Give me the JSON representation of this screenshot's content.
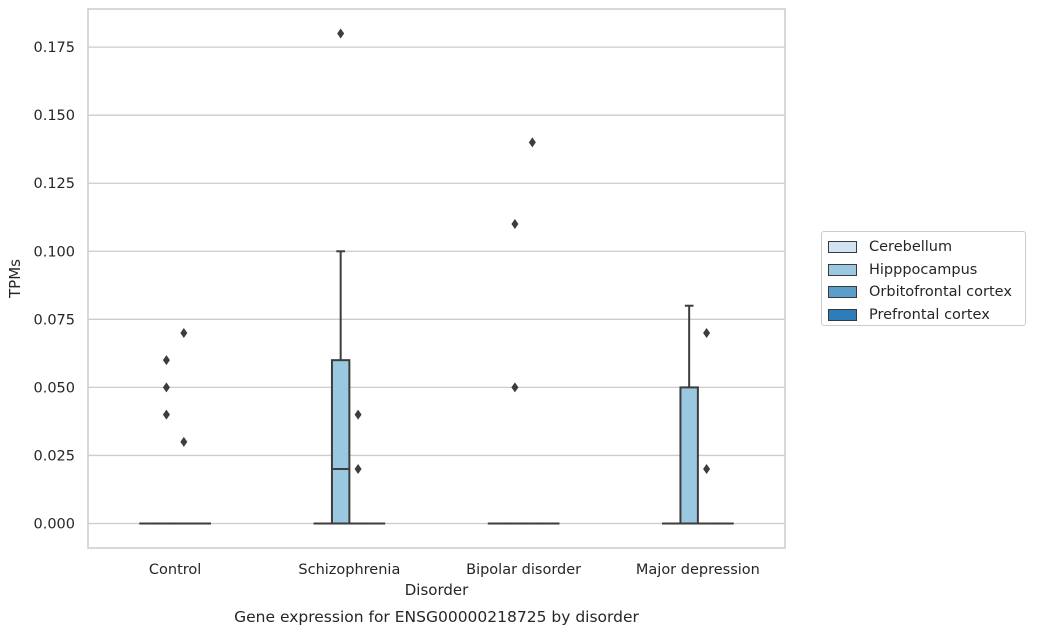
{
  "chart_data": {
    "type": "box",
    "title": "Gene expression for ENSG00000218725 by disorder",
    "xlabel": "Disorder",
    "ylabel": "TPMs",
    "ylim": [
      -0.009,
      0.189
    ],
    "yticks": [
      0.0,
      0.025,
      0.05,
      0.075,
      0.1,
      0.125,
      0.15,
      0.175
    ],
    "ytick_labels": [
      "0.000",
      "0.025",
      "0.050",
      "0.075",
      "0.100",
      "0.125",
      "0.150",
      "0.175"
    ],
    "grid": "horizontal",
    "legend_position": "right",
    "categories": [
      "Control",
      "Schizophrenia",
      "Bipolar disorder",
      "Major depression"
    ],
    "series": [
      {
        "name": "Cerebellum",
        "color": "#d1e3f3",
        "boxes": [
          {
            "category": "Control",
            "q1": 0,
            "median": 0,
            "q3": 0,
            "whisker_low": 0,
            "whisker_high": 0,
            "outliers": []
          },
          {
            "category": "Schizophrenia",
            "q1": 0,
            "median": 0,
            "q3": 0,
            "whisker_low": 0,
            "whisker_high": 0,
            "outliers": []
          },
          {
            "category": "Bipolar disorder",
            "q1": 0,
            "median": 0,
            "q3": 0,
            "whisker_low": 0,
            "whisker_high": 0,
            "outliers": []
          },
          {
            "category": "Major depression",
            "q1": 0,
            "median": 0,
            "q3": 0,
            "whisker_low": 0,
            "whisker_high": 0,
            "outliers": []
          }
        ]
      },
      {
        "name": "Hipppocampus",
        "color": "#9ac8e0",
        "boxes": [
          {
            "category": "Control",
            "q1": 0,
            "median": 0,
            "q3": 0,
            "whisker_low": 0,
            "whisker_high": 0,
            "outliers": [
              0.04,
              0.05,
              0.06
            ]
          },
          {
            "category": "Schizophrenia",
            "q1": 0,
            "median": 0.02,
            "q3": 0.06,
            "whisker_low": 0,
            "whisker_high": 0.1,
            "outliers": [
              0.18
            ]
          },
          {
            "category": "Bipolar disorder",
            "q1": 0,
            "median": 0,
            "q3": 0,
            "whisker_low": 0,
            "whisker_high": 0,
            "outliers": [
              0.05,
              0.11
            ]
          },
          {
            "category": "Major depression",
            "q1": 0,
            "median": 0,
            "q3": 0.05,
            "whisker_low": 0,
            "whisker_high": 0.08,
            "outliers": []
          }
        ]
      },
      {
        "name": "Orbitofrontal cortex",
        "color": "#5a9ec9",
        "boxes": [
          {
            "category": "Control",
            "q1": 0,
            "median": 0,
            "q3": 0,
            "whisker_low": 0,
            "whisker_high": 0,
            "outliers": [
              0.07,
              0.03
            ]
          },
          {
            "category": "Schizophrenia",
            "q1": 0,
            "median": 0,
            "q3": 0,
            "whisker_low": 0,
            "whisker_high": 0,
            "outliers": [
              0.02,
              0.04
            ]
          },
          {
            "category": "Bipolar disorder",
            "q1": 0,
            "median": 0,
            "q3": 0,
            "whisker_low": 0,
            "whisker_high": 0,
            "outliers": [
              0.14
            ]
          },
          {
            "category": "Major depression",
            "q1": 0,
            "median": 0,
            "q3": 0,
            "whisker_low": 0,
            "whisker_high": 0,
            "outliers": [
              0.07,
              0.02
            ]
          }
        ]
      },
      {
        "name": "Prefrontal cortex",
        "color": "#2d7dbb",
        "boxes": [
          {
            "category": "Control",
            "q1": 0,
            "median": 0,
            "q3": 0,
            "whisker_low": 0,
            "whisker_high": 0,
            "outliers": []
          },
          {
            "category": "Schizophrenia",
            "q1": 0,
            "median": 0,
            "q3": 0,
            "whisker_low": 0,
            "whisker_high": 0,
            "outliers": []
          },
          {
            "category": "Bipolar disorder",
            "q1": 0,
            "median": 0,
            "q3": 0,
            "whisker_low": 0,
            "whisker_high": 0,
            "outliers": []
          },
          {
            "category": "Major depression",
            "q1": 0,
            "median": 0,
            "q3": 0,
            "whisker_low": 0,
            "whisker_high": 0,
            "outliers": []
          }
        ]
      }
    ]
  }
}
